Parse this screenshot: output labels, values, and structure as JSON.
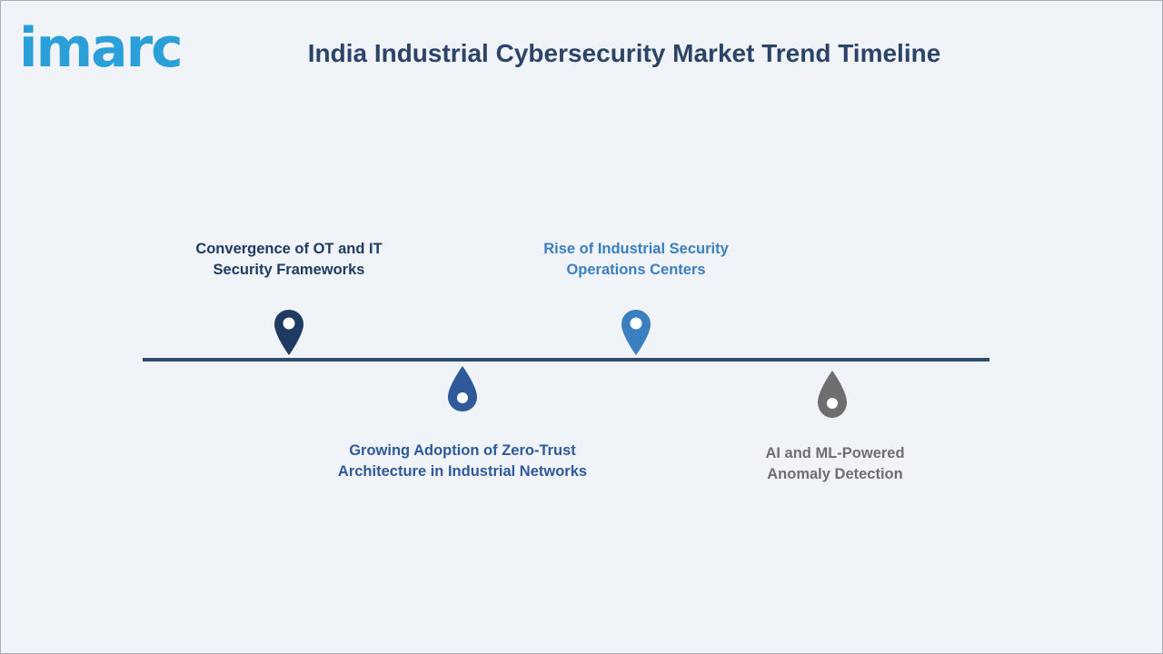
{
  "logo_text": "imarc",
  "title": "India Industrial Cybersecurity Market Trend Timeline",
  "colors": {
    "accent": "#2a9fd8",
    "title": "#2c4467",
    "line": "#2c4a6a",
    "pin_1": "#1f3a63",
    "pin_2": "#2e5a9a",
    "pin_3": "#3a7fc0",
    "pin_4": "#6e6e6e"
  },
  "milestones": [
    {
      "line1": "Convergence of OT and IT",
      "line2": "Security Frameworks",
      "position": "above",
      "icon": "map-pin-icon"
    },
    {
      "line1": "Growing Adoption of Zero-Trust",
      "line2": "Architecture in Industrial Networks",
      "position": "below",
      "icon": "drop-icon"
    },
    {
      "line1": "Rise of Industrial Security",
      "line2": "Operations Centers",
      "position": "above",
      "icon": "map-pin-icon"
    },
    {
      "line1": "AI and ML-Powered",
      "line2": "Anomaly Detection",
      "position": "below",
      "icon": "drop-icon"
    }
  ]
}
